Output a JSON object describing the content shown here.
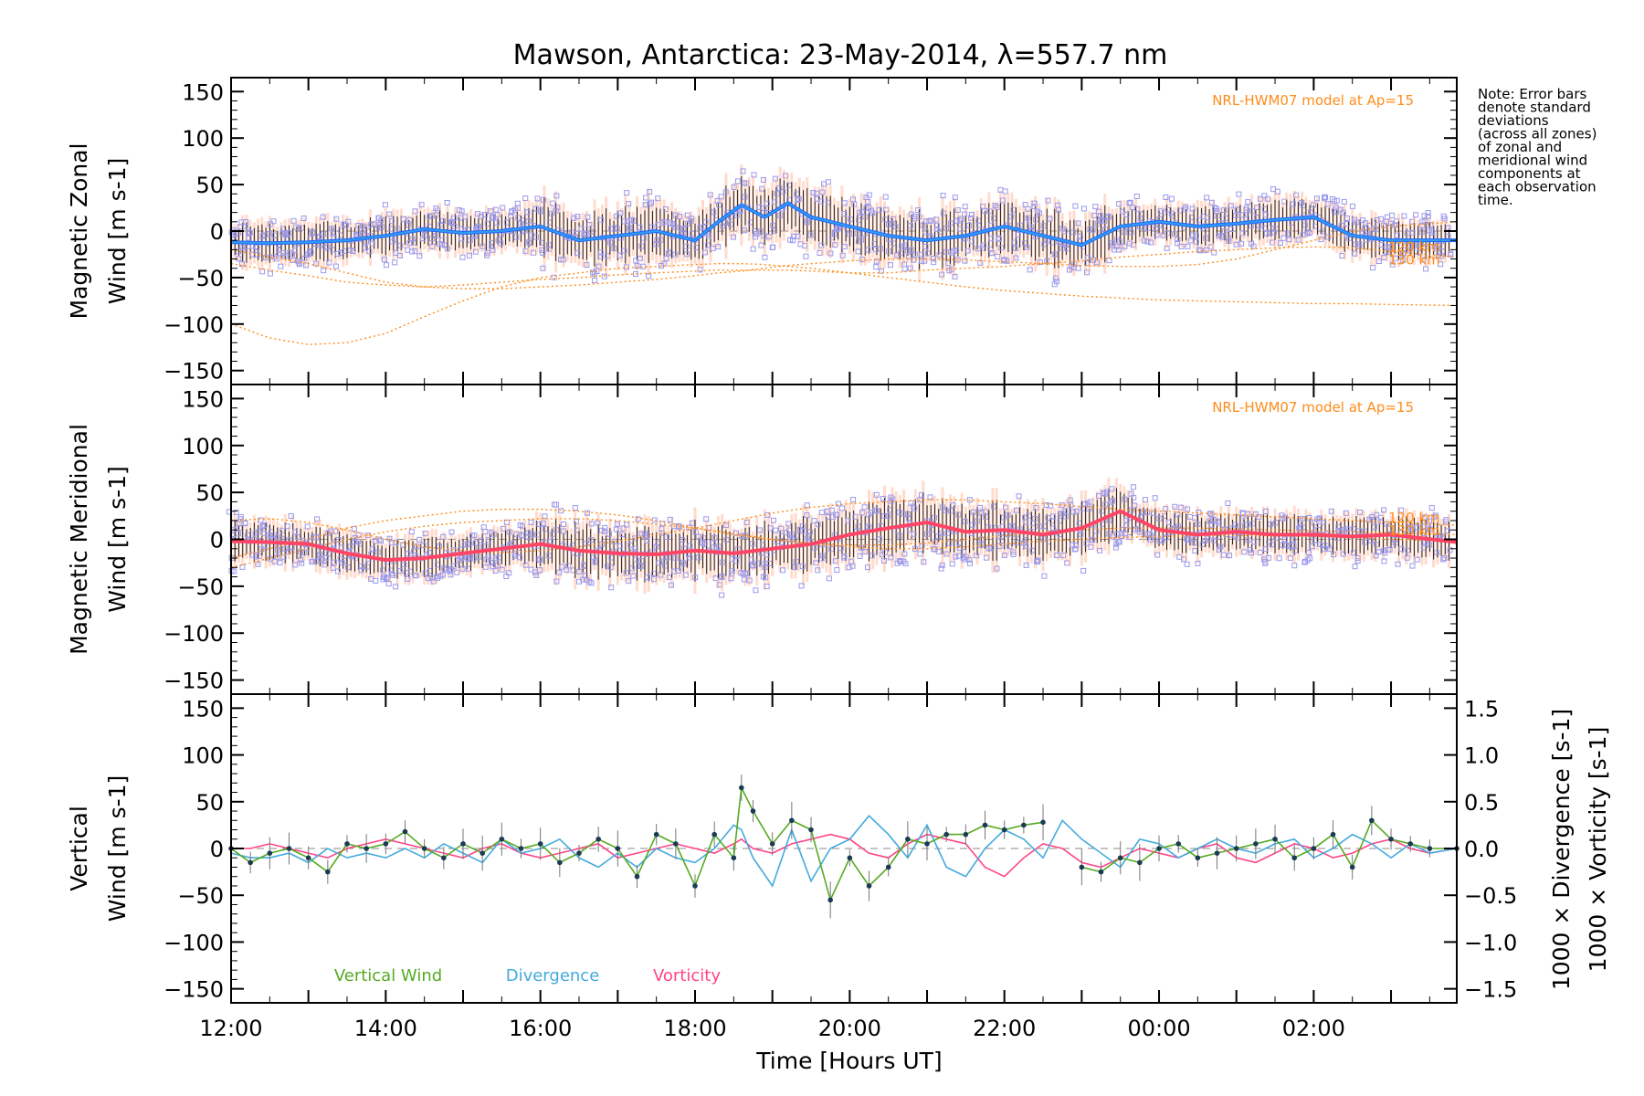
{
  "title": "Mawson, Antarctica: 23-May-2014, λ=557.7 nm",
  "note": [
    "Note: Error bars",
    "denote standard",
    "deviations",
    "(across all zones)",
    "of zonal and",
    "meridional wind",
    "components at",
    "each observation",
    "time."
  ],
  "x_axis": {
    "label": "Time [Hours UT]",
    "ticks": [
      "12:00",
      "14:00",
      "16:00",
      "18:00",
      "20:00",
      "22:00",
      "00:00",
      "02:00"
    ],
    "tick_hours": [
      12,
      14,
      16,
      18,
      20,
      22,
      24,
      26
    ],
    "range": [
      12,
      27.85
    ]
  },
  "colors": {
    "zonal_line": "#2266ff",
    "zonal_line2": "#33aaee",
    "meridional_line": "#ff4466",
    "model": "#ff8c1a",
    "scatter": "#9a9aee",
    "spread": "#ffb090",
    "errorbar": "#222222",
    "vertical": "#55aa22",
    "divergence": "#44aadd",
    "vorticity": "#ff4488"
  },
  "chart_data": [
    {
      "type": "line",
      "panel": "zonal",
      "ylabel": [
        "Magnetic Zonal",
        "Wind [m s-1]"
      ],
      "ylim": [
        -165,
        165
      ],
      "yticks": [
        150,
        100,
        50,
        0,
        -50,
        -100,
        -150
      ],
      "model_label": "NRL-HWM07 model at Ap=15",
      "model_height_labels": [
        "120 km",
        "130 km"
      ],
      "x": [
        12.0,
        12.5,
        13.0,
        13.5,
        14.0,
        14.5,
        15.0,
        15.5,
        16.0,
        16.5,
        17.0,
        17.5,
        18.0,
        18.3,
        18.6,
        18.9,
        19.2,
        19.5,
        20.0,
        20.5,
        21.0,
        21.5,
        22.0,
        22.5,
        23.0,
        23.5,
        24.0,
        24.5,
        25.0,
        25.5,
        26.0,
        26.5,
        27.0,
        27.85
      ],
      "series": [
        {
          "values": [
            -12,
            -13,
            -12,
            -10,
            -5,
            2,
            -2,
            0,
            5,
            -10,
            -5,
            0,
            -10,
            10,
            28,
            15,
            30,
            15,
            5,
            -5,
            -10,
            -5,
            5,
            -5,
            -15,
            5,
            10,
            5,
            8,
            12,
            15,
            -5,
            -10,
            -10
          ]
        },
        {
          "values": [
            -100,
            -115,
            -122,
            -120,
            -110,
            -92,
            -75,
            -60,
            -50,
            -45,
            -40,
            -38,
            -36,
            -35,
            -35,
            -36,
            -38,
            -40,
            -45,
            -50,
            -55,
            -60,
            -64,
            -67,
            -70,
            -72,
            -74,
            -75,
            -76,
            -77,
            -78,
            -78,
            -79,
            -80
          ]
        },
        {
          "values": [
            -35,
            -42,
            -48,
            -55,
            -58,
            -60,
            -58,
            -55,
            -52,
            -50,
            -47,
            -45,
            -43,
            -42,
            -42,
            -42,
            -42,
            -43,
            -45,
            -45,
            -42,
            -40,
            -38,
            -35,
            -32,
            -28,
            -25,
            -22,
            -20,
            -18,
            -17,
            -18,
            -22,
            -28
          ]
        },
        {
          "values": [
            -20,
            -28,
            -35,
            -45,
            -55,
            -60,
            -62,
            -62,
            -60,
            -58,
            -55,
            -52,
            -48,
            -45,
            -43,
            -40,
            -37,
            -35,
            -32,
            -30,
            -30,
            -31,
            -33,
            -35,
            -37,
            -38,
            -38,
            -36,
            -30,
            -20,
            -10,
            0,
            5,
            10
          ]
        }
      ]
    },
    {
      "type": "line",
      "panel": "meridional",
      "ylabel": [
        "Magnetic Meridional",
        "Wind [m s-1]"
      ],
      "ylim": [
        -165,
        165
      ],
      "yticks": [
        150,
        100,
        50,
        0,
        -50,
        -100,
        -150
      ],
      "model_label": "NRL-HWM07 model at Ap=15",
      "model_height_labels": [
        "120 km",
        "130 km"
      ],
      "x": [
        12.0,
        12.5,
        13.0,
        13.5,
        14.0,
        14.5,
        15.0,
        15.5,
        16.0,
        16.5,
        17.0,
        17.5,
        18.0,
        18.5,
        19.0,
        19.5,
        20.0,
        20.5,
        21.0,
        21.5,
        22.0,
        22.5,
        23.0,
        23.5,
        24.0,
        24.5,
        25.0,
        25.5,
        26.0,
        26.5,
        27.0,
        27.85
      ],
      "series": [
        {
          "values": [
            -2,
            -3,
            -5,
            -15,
            -22,
            -20,
            -15,
            -10,
            -5,
            -12,
            -15,
            -16,
            -12,
            -15,
            -10,
            -5,
            5,
            12,
            18,
            8,
            10,
            5,
            12,
            30,
            10,
            5,
            8,
            5,
            5,
            3,
            5,
            -3
          ]
        },
        {
          "values": [
            20,
            22,
            18,
            10,
            0,
            -8,
            -12,
            -14,
            -12,
            -8,
            -2,
            5,
            12,
            20,
            28,
            34,
            38,
            40,
            42,
            42,
            40,
            38,
            35,
            32,
            30,
            28,
            26,
            24,
            22,
            20,
            18,
            15
          ]
        },
        {
          "values": [
            -20,
            -10,
            0,
            12,
            20,
            25,
            30,
            32,
            32,
            30,
            26,
            20,
            12,
            5,
            0,
            -5,
            -8,
            -10,
            -10,
            -8,
            -5,
            -2,
            0,
            2,
            3,
            4,
            4,
            4,
            3,
            2,
            0,
            -2
          ]
        },
        {
          "values": [
            -30,
            -20,
            -10,
            0,
            8,
            14,
            18,
            20,
            22,
            22,
            20,
            16,
            12,
            6,
            0,
            -4,
            -6,
            -6,
            -4,
            0,
            4,
            8,
            10,
            12,
            12,
            12,
            11,
            10,
            9,
            8,
            7,
            5
          ]
        }
      ]
    },
    {
      "type": "line",
      "panel": "vertical",
      "ylabel": [
        "Vertical",
        "Wind [m s-1]"
      ],
      "ylim": [
        -165,
        165
      ],
      "yticks": [
        150,
        100,
        50,
        0,
        -50,
        -100,
        -150
      ],
      "y2label_divergence": "1000 × Divergence [s-1]",
      "y2label_vorticity": "1000 × Vorticity [s-1]",
      "y2lim": [
        -1.65,
        1.65
      ],
      "y2ticks": [
        "1.5",
        "1.0",
        "0.5",
        "0.0",
        "−0.5",
        "−1.0",
        "−1.5"
      ],
      "y2tick_values": [
        1.5,
        1.0,
        0.5,
        0.0,
        -0.5,
        -1.0,
        -1.5
      ],
      "legend": [
        "Vertical Wind",
        "Divergence",
        "Vorticity"
      ],
      "x": [
        12.0,
        12.25,
        12.5,
        12.75,
        13.0,
        13.25,
        13.5,
        13.75,
        14.0,
        14.25,
        14.5,
        14.75,
        15.0,
        15.25,
        15.5,
        15.75,
        16.0,
        16.25,
        16.5,
        16.75,
        17.0,
        17.25,
        17.5,
        17.75,
        18.0,
        18.25,
        18.5,
        18.6,
        18.75,
        19.0,
        19.25,
        19.5,
        19.75,
        20.0,
        20.25,
        20.5,
        20.75,
        21.0,
        21.25,
        21.5,
        21.75,
        22.0,
        22.25,
        22.5,
        22.75,
        23.0,
        23.25,
        23.5,
        23.75,
        24.0,
        24.25,
        24.5,
        24.75,
        25.0,
        25.25,
        25.5,
        25.75,
        26.0,
        26.25,
        26.5,
        26.75,
        27.0,
        27.25,
        27.5,
        27.85
      ],
      "series": [
        {
          "name": "Vertical Wind",
          "values": [
            0,
            -15,
            -5,
            0,
            -10,
            -25,
            5,
            0,
            5,
            18,
            0,
            -10,
            5,
            -5,
            10,
            0,
            5,
            -15,
            -5,
            10,
            0,
            -30,
            15,
            5,
            -40,
            15,
            -10,
            65,
            40,
            5,
            30,
            20,
            -55,
            -10,
            -40,
            -20,
            10,
            5,
            15,
            15,
            25,
            20,
            25,
            28,
            null,
            -20,
            -25,
            -10,
            -15,
            0,
            5,
            -10,
            -5,
            0,
            5,
            10,
            -10,
            0,
            15,
            -20,
            30,
            10,
            5,
            0,
            0
          ]
        },
        {
          "name": "Divergence",
          "values": [
            -0.05,
            -0.1,
            -0.1,
            -0.05,
            -0.15,
            0.0,
            -0.1,
            -0.05,
            -0.1,
            0.0,
            -0.1,
            0.05,
            -0.05,
            -0.15,
            0.1,
            -0.05,
            0.0,
            0.1,
            -0.1,
            -0.2,
            -0.05,
            -0.2,
            0.0,
            -0.1,
            -0.15,
            0.0,
            0.25,
            0.2,
            -0.1,
            -0.4,
            0.2,
            -0.35,
            0.0,
            0.1,
            0.35,
            0.15,
            -0.1,
            0.25,
            -0.2,
            -0.3,
            0.0,
            0.2,
            0.1,
            -0.1,
            0.3,
            0.1,
            -0.05,
            -0.2,
            0.1,
            0.05,
            -0.1,
            0.0,
            0.1,
            0.0,
            -0.05,
            0.05,
            0.1,
            -0.1,
            0.0,
            0.15,
            0.05,
            -0.1,
            0.05,
            -0.05,
            0.0
          ]
        },
        {
          "name": "Vorticity",
          "values": [
            0.0,
            0.0,
            0.05,
            0.0,
            -0.05,
            -0.1,
            0.0,
            0.05,
            0.1,
            0.05,
            0.0,
            -0.05,
            -0.1,
            0.0,
            0.05,
            -0.05,
            -0.1,
            -0.05,
            0.0,
            0.05,
            -0.1,
            -0.05,
            0.0,
            0.05,
            0.0,
            -0.05,
            0.05,
            0.1,
            0.0,
            -0.05,
            0.05,
            0.1,
            0.15,
            0.1,
            -0.05,
            -0.1,
            0.05,
            0.15,
            0.1,
            0.05,
            -0.2,
            -0.3,
            -0.1,
            0.05,
            0.0,
            -0.15,
            -0.2,
            -0.1,
            0.0,
            -0.05,
            -0.1,
            0.0,
            0.05,
            -0.1,
            -0.15,
            -0.05,
            0.05,
            0.0,
            -0.1,
            -0.05,
            0.05,
            0.1,
            0.0,
            -0.05,
            0.0
          ]
        }
      ]
    }
  ]
}
